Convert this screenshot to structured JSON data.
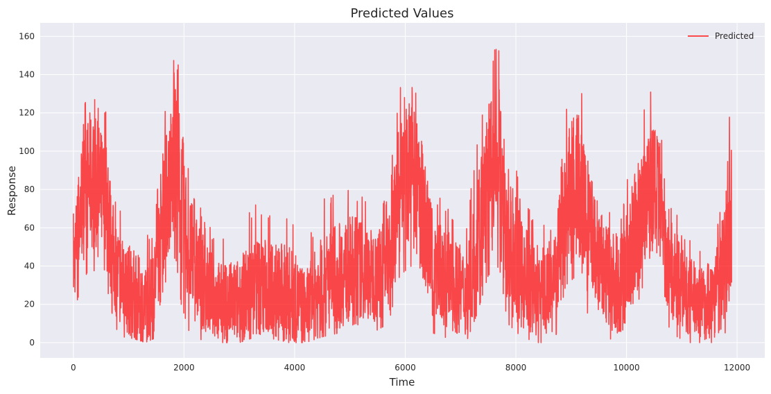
{
  "chart_data": {
    "type": "line",
    "title": "Predicted Values",
    "xlabel": "Time",
    "ylabel": "Response",
    "xlim": [
      -600,
      12500
    ],
    "ylim": [
      -8,
      167
    ],
    "xticks": [
      0,
      2000,
      4000,
      6000,
      8000,
      10000,
      12000
    ],
    "yticks": [
      0,
      20,
      40,
      60,
      80,
      100,
      120,
      140,
      160
    ],
    "grid": true,
    "legend_position": "top-right",
    "colors": {
      "plot_bg": "#eaeaf2",
      "grid": "#ffffff",
      "series": "#ff0000"
    },
    "series": [
      {
        "name": "Predicted",
        "color": "#ff0000",
        "opacity": 0.7,
        "x_range": [
          0,
          11900
        ],
        "envelope": {
          "x": [
            0,
            150,
            300,
            450,
            600,
            750,
            900,
            1100,
            1300,
            1450,
            1600,
            1750,
            1850,
            1950,
            2100,
            2400,
            2700,
            3000,
            3300,
            3600,
            3900,
            4200,
            4500,
            4800,
            5100,
            5400,
            5700,
            5900,
            6100,
            6300,
            6500,
            6800,
            7100,
            7300,
            7500,
            7700,
            7850,
            8100,
            8400,
            8700,
            8900,
            9100,
            9300,
            9600,
            9900,
            10200,
            10400,
            10600,
            10800,
            11100,
            11400,
            11700,
            11900
          ],
          "high": [
            68,
            120,
            135,
            130,
            122,
            75,
            70,
            65,
            55,
            60,
            110,
            140,
            158,
            130,
            90,
            62,
            55,
            60,
            75,
            68,
            70,
            50,
            75,
            80,
            82,
            70,
            80,
            135,
            140,
            120,
            80,
            70,
            60,
            105,
            143,
            160,
            110,
            80,
            65,
            65,
            125,
            147,
            110,
            75,
            70,
            112,
            147,
            120,
            75,
            55,
            50,
            70,
            135
          ],
          "mid": [
            40,
            75,
            85,
            80,
            70,
            40,
            30,
            25,
            20,
            25,
            65,
            85,
            95,
            75,
            45,
            28,
            20,
            22,
            30,
            28,
            25,
            18,
            30,
            35,
            40,
            35,
            40,
            80,
            90,
            70,
            40,
            32,
            25,
            50,
            85,
            90,
            55,
            35,
            28,
            30,
            70,
            85,
            60,
            35,
            30,
            60,
            85,
            70,
            38,
            25,
            20,
            30,
            70
          ],
          "low": [
            15,
            30,
            40,
            35,
            30,
            8,
            3,
            2,
            0,
            2,
            25,
            40,
            45,
            20,
            5,
            0,
            0,
            0,
            3,
            2,
            0,
            0,
            3,
            5,
            10,
            5,
            10,
            35,
            40,
            25,
            5,
            2,
            0,
            15,
            35,
            40,
            10,
            3,
            0,
            0,
            30,
            35,
            15,
            3,
            0,
            20,
            40,
            25,
            5,
            0,
            0,
            0,
            12
          ]
        }
      }
    ]
  }
}
